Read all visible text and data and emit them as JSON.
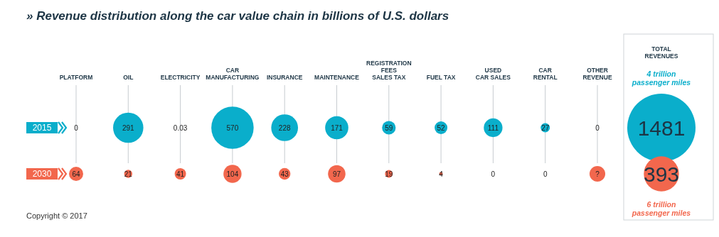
{
  "chart_data": {
    "type": "other",
    "title": "» Revenue distribution along the car value chain in billions of U.S. dollars",
    "categories": [
      "PLATFORM",
      "OIL",
      "ELECTRICITY",
      "CAR\nMANUFACTURING",
      "INSURANCE",
      "MAINTENANCE",
      "REGISTRATION\nFEES\nSALES TAX",
      "FUEL TAX",
      "USED\nCAR SALES",
      "CAR\nRENTAL",
      "OTHER\nREVENUE",
      "TOTAL\nREVENUES"
    ],
    "series": [
      {
        "name": "2015",
        "color": "#0aaecb",
        "values": [
          0,
          291,
          0.03,
          570,
          228,
          171,
          59,
          52,
          111,
          27,
          0,
          1481
        ],
        "value_labels": [
          "0",
          "291",
          "0.03",
          "570",
          "228",
          "171",
          "59",
          "52",
          "111",
          "27",
          "0",
          "1481"
        ]
      },
      {
        "name": "2030",
        "color": "#f2674d",
        "values": [
          64,
          21,
          41,
          104,
          43,
          97,
          19,
          4,
          0,
          0,
          null,
          393
        ],
        "value_labels": [
          "64",
          "21",
          "41",
          "104",
          "43",
          "97",
          "19",
          "4",
          "0",
          "0",
          "?",
          "393"
        ]
      }
    ],
    "legend": "left",
    "annotations": [
      "4 trillion\npassenger miles",
      "6 trillion\npassenger miles",
      "Copyright © 2017"
    ]
  }
}
